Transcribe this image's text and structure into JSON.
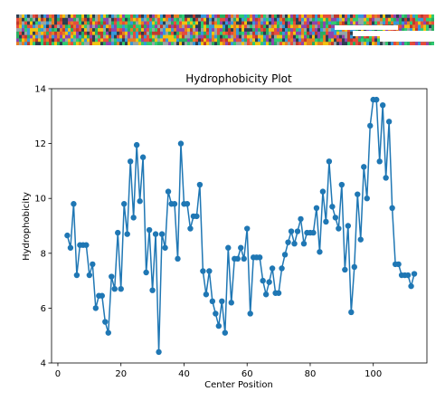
{
  "chart_data": {
    "type": "line",
    "title": "Hydrophobicity Plot",
    "xlabel": "Center Position",
    "ylabel": "Hydrophobicity",
    "xlim": [
      -2,
      117
    ],
    "ylim": [
      4,
      14
    ],
    "xticks": [
      0,
      20,
      40,
      60,
      80,
      100
    ],
    "yticks": [
      4,
      6,
      8,
      10,
      12,
      14
    ],
    "grid": false,
    "series": [
      {
        "color": "#1f77b4",
        "x": [
          3,
          4,
          5,
          6,
          7,
          8,
          9,
          10,
          11,
          12,
          13,
          14,
          15,
          16,
          17,
          18,
          19,
          20,
          21,
          22,
          23,
          24,
          25,
          26,
          27,
          28,
          29,
          30,
          31,
          32,
          33,
          34,
          35,
          36,
          37,
          38,
          39,
          40,
          41,
          42,
          43,
          44,
          45,
          46,
          47,
          48,
          49,
          50,
          51,
          52,
          53,
          54,
          55,
          56,
          57,
          58,
          59,
          60,
          61,
          62,
          63,
          64,
          65,
          66,
          67,
          68,
          69,
          70,
          71,
          72,
          73,
          74,
          75,
          76,
          77,
          78,
          79,
          80,
          81,
          82,
          83,
          84,
          85,
          86,
          87,
          88,
          89,
          90,
          91,
          92,
          93,
          94,
          95,
          96,
          97,
          98,
          99,
          100,
          101,
          102,
          103,
          104,
          105,
          106,
          107,
          108,
          109,
          110,
          111,
          112,
          113
        ],
        "y": [
          8.65,
          8.2,
          9.8,
          7.2,
          8.3,
          8.3,
          8.3,
          7.2,
          7.6,
          6.0,
          6.45,
          6.45,
          5.5,
          5.1,
          7.15,
          6.7,
          8.75,
          6.7,
          9.8,
          8.7,
          11.35,
          9.3,
          11.95,
          9.9,
          11.5,
          7.3,
          8.85,
          6.65,
          8.7,
          4.4,
          8.7,
          8.2,
          10.25,
          9.8,
          9.8,
          7.8,
          12.0,
          9.8,
          9.8,
          8.9,
          9.35,
          9.35,
          10.5,
          7.35,
          6.5,
          7.35,
          6.25,
          5.8,
          5.35,
          6.25,
          5.1,
          8.2,
          6.2,
          7.8,
          7.8,
          8.2,
          7.8,
          8.9,
          5.8,
          7.85,
          7.85,
          7.85,
          7.0,
          6.5,
          6.95,
          7.45,
          6.55,
          6.55,
          7.45,
          7.95,
          8.4,
          8.8,
          8.35,
          8.8,
          9.25,
          8.35,
          8.75,
          8.75,
          8.75,
          9.65,
          8.05,
          10.25,
          9.15,
          11.35,
          9.7,
          9.3,
          8.9,
          10.5,
          7.4,
          9.0,
          5.85,
          7.5,
          10.15,
          8.5,
          11.15,
          10.0,
          12.65,
          13.6,
          13.6,
          11.35,
          13.4,
          10.75,
          12.8,
          9.65,
          7.6,
          7.6,
          7.2,
          7.2,
          7.2,
          6.8,
          7.25
        ]
      }
    ]
  },
  "sequence_strip": {
    "palette": [
      "#e74c3c",
      "#f1c40f",
      "#3498db",
      "#2ecc71",
      "#2c3e50",
      "#95a5a6",
      "#e67e22",
      "#8e44ad",
      "#c0392b",
      "#27ae60"
    ]
  }
}
